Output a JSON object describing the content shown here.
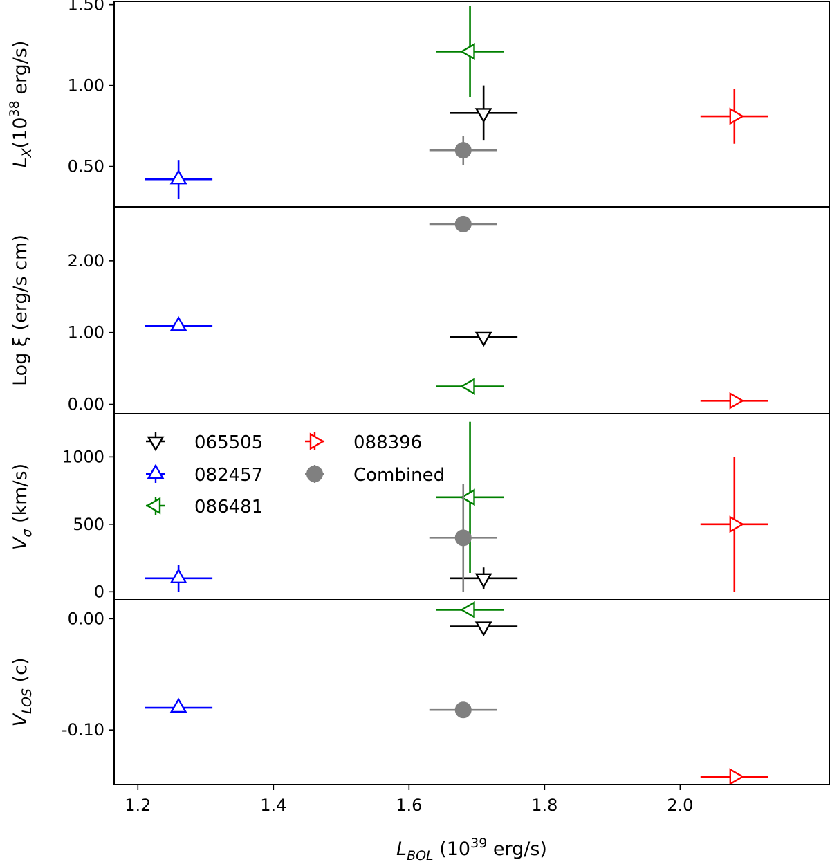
{
  "chart_data": {
    "type": "scatter",
    "layout": "4 vertically stacked panels sharing the x-axis",
    "xlabel": {
      "main": "L",
      "sub": "BOL",
      "rest": " (10",
      "sup": "39",
      "tail": " erg/s)"
    },
    "xlim": [
      1.165,
      2.22
    ],
    "xticks": [
      "1.2",
      "1.4",
      "1.6",
      "1.8",
      "2.0"
    ],
    "xtick_values": [
      1.2,
      1.4,
      1.6,
      1.8,
      2.0
    ],
    "grid": false,
    "legend": {
      "placement": "third panel, upper-left",
      "columns": 2
    },
    "series": [
      {
        "name": "065505",
        "color": "#000000",
        "marker": "triangle-down"
      },
      {
        "name": "082457",
        "color": "#0000ff",
        "marker": "triangle-up"
      },
      {
        "name": "086481",
        "color": "#008000",
        "marker": "triangle-left"
      },
      {
        "name": "088396",
        "color": "#ff0000",
        "marker": "triangle-right"
      },
      {
        "name": "Combined",
        "color": "#808080",
        "marker": "circle"
      }
    ],
    "panels": [
      {
        "ylabel": {
          "main": "L",
          "sub": "X",
          "rest": "(10",
          "sup": "38",
          "tail": " erg/s)"
        },
        "ylim": [
          0.25,
          1.52
        ],
        "yticks": [
          "0.50",
          "1.00",
          "1.50"
        ],
        "ytick_values": [
          0.5,
          1.0,
          1.5
        ],
        "points": [
          {
            "series": "065505",
            "x": 1.71,
            "y": 0.83,
            "xerr": [
              0.05,
              0.05
            ],
            "yerr": [
              0.17,
              0.17
            ]
          },
          {
            "series": "082457",
            "x": 1.26,
            "y": 0.42,
            "xerr": [
              0.05,
              0.05
            ],
            "yerr": [
              0.12,
              0.12
            ]
          },
          {
            "series": "086481",
            "x": 1.69,
            "y": 1.21,
            "xerr": [
              0.05,
              0.05
            ],
            "yerr": [
              0.28,
              0.28
            ]
          },
          {
            "series": "088396",
            "x": 2.08,
            "y": 0.81,
            "xerr": [
              0.05,
              0.05
            ],
            "yerr": [
              0.17,
              0.17
            ]
          },
          {
            "series": "Combined",
            "x": 1.68,
            "y": 0.6,
            "xerr": [
              0.05,
              0.05
            ],
            "yerr": [
              0.09,
              0.09
            ]
          }
        ]
      },
      {
        "ylabel": {
          "main": "Log ξ (erg/s cm)"
        },
        "ylim": [
          -0.13,
          2.75
        ],
        "yticks": [
          "0.00",
          "1.00",
          "2.00"
        ],
        "ytick_values": [
          0,
          1,
          2
        ],
        "points": [
          {
            "series": "065505",
            "x": 1.71,
            "y": 0.94,
            "xerr": [
              0.05,
              0.05
            ]
          },
          {
            "series": "082457",
            "x": 1.26,
            "y": 1.09,
            "xerr": [
              0.05,
              0.05
            ]
          },
          {
            "series": "086481",
            "x": 1.69,
            "y": 0.25,
            "xerr": [
              0.05,
              0.05
            ]
          },
          {
            "series": "088396",
            "x": 2.08,
            "y": 0.05,
            "xerr": [
              0.05,
              0.05
            ]
          },
          {
            "series": "Combined",
            "x": 1.68,
            "y": 2.51,
            "xerr": [
              0.05,
              0.05
            ]
          }
        ]
      },
      {
        "ylabel": {
          "main": "V",
          "sub": "σ",
          "rest": " (km/s)"
        },
        "ylim": [
          -60,
          1320
        ],
        "yticks": [
          "0",
          "500",
          "1000"
        ],
        "ytick_values": [
          0,
          500,
          1000
        ],
        "points": [
          {
            "series": "065505",
            "x": 1.71,
            "y": 100,
            "xerr": [
              0.05,
              0.05
            ],
            "yerr": [
              80,
              80
            ]
          },
          {
            "series": "082457",
            "x": 1.26,
            "y": 100,
            "xerr": [
              0.05,
              0.05
            ],
            "yerr": [
              100,
              100
            ]
          },
          {
            "series": "086481",
            "x": 1.69,
            "y": 700,
            "xerr": [
              0.05,
              0.05
            ],
            "yerr": [
              560,
              560
            ]
          },
          {
            "series": "088396",
            "x": 2.08,
            "y": 500,
            "xerr": [
              0.05,
              0.05
            ],
            "yerr": [
              500,
              500
            ]
          },
          {
            "series": "Combined",
            "x": 1.68,
            "y": 400,
            "xerr": [
              0.05,
              0.05
            ],
            "yerr": [
              400,
              400
            ]
          }
        ]
      },
      {
        "ylabel": {
          "main": "V",
          "sub": "LOS",
          "rest": " (c)"
        },
        "ylim": [
          -0.149,
          0.017
        ],
        "yticks": [
          "-0.10",
          "0.00"
        ],
        "ytick_values": [
          -0.1,
          0.0
        ],
        "points": [
          {
            "series": "065505",
            "x": 1.71,
            "y": -0.007,
            "xerr": [
              0.05,
              0.05
            ]
          },
          {
            "series": "082457",
            "x": 1.26,
            "y": -0.08,
            "xerr": [
              0.05,
              0.05
            ]
          },
          {
            "series": "086481",
            "x": 1.69,
            "y": 0.008,
            "xerr": [
              0.05,
              0.05
            ]
          },
          {
            "series": "088396",
            "x": 2.08,
            "y": -0.142,
            "xerr": [
              0.05,
              0.05
            ]
          },
          {
            "series": "Combined",
            "x": 1.68,
            "y": -0.082,
            "xerr": [
              0.05,
              0.05
            ]
          }
        ]
      }
    ]
  }
}
